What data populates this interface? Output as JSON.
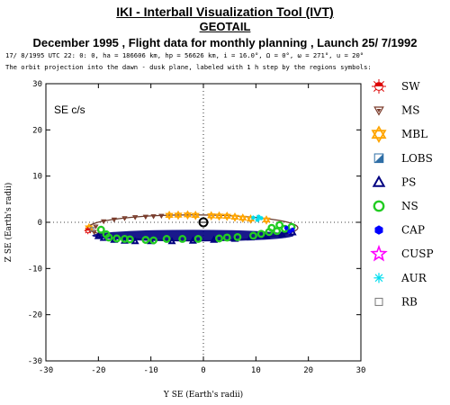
{
  "header": {
    "title": "IKI - Interball Visualization Tool (IVT)",
    "subtitle": "GEOTAIL",
    "line3": "December 1995 ,  Flight data for monthly planning ,   Launch 25/ 7/1992",
    "info": "17/ 8/1995 UTC 22: 0: 0, ha = 186606 km, hp = 56626 km, i = 16.0°, Ω =   0°, ω = 271°, u =  20°",
    "note": "The orbit projection into the dawn - dusk plane, labeled with 1 h step by the regions symbols:"
  },
  "panel_label": "SE c/s",
  "colors": {
    "orbit": "#6b3b2b",
    "SW": "#dd0000",
    "MS": "#7a3b2a",
    "MBL": "#ffa500",
    "LOBS": "#2e6ea6",
    "PS": "#000080",
    "NS": "#22cc22",
    "CAP": "#0000ff",
    "CUSP": "#ff00ff",
    "AUR": "#00ddee",
    "RB": "#777777",
    "earth": "#000000"
  },
  "legend": [
    {
      "key": "SW",
      "label": "SW",
      "icon": "sun-icon"
    },
    {
      "key": "MS",
      "label": "MS",
      "icon": "triangle-down-icon"
    },
    {
      "key": "MBL",
      "label": "MBL",
      "icon": "star-of-david-icon"
    },
    {
      "key": "LOBS",
      "label": "LOBS",
      "icon": "half-square-icon"
    },
    {
      "key": "PS",
      "label": "PS",
      "icon": "triangle-icon"
    },
    {
      "key": "NS",
      "label": "NS",
      "icon": "circle-icon"
    },
    {
      "key": "CAP",
      "label": "CAP",
      "icon": "hexagon-icon"
    },
    {
      "key": "CUSP",
      "label": "CUSP",
      "icon": "star-icon"
    },
    {
      "key": "AUR",
      "label": "AUR",
      "icon": "asterisk-icon"
    },
    {
      "key": "RB",
      "label": "RB",
      "icon": "square-icon"
    }
  ],
  "chart_data": {
    "type": "scatter",
    "xlabel": "Y SE (Earth's radii)",
    "ylabel": "Z SE (Earth's radii)",
    "xlim": [
      -30,
      30
    ],
    "ylim": [
      -30,
      30
    ],
    "xticks": [
      -30,
      -20,
      -10,
      0,
      10,
      20,
      30
    ],
    "yticks": [
      -30,
      -20,
      -10,
      0,
      10,
      20,
      30
    ],
    "grid": false,
    "dotted_zero_lines": true,
    "orbit_ellipse": {
      "center": [
        -2.0,
        -1.2
      ],
      "semi_axis_y": 20.0,
      "semi_axis_z": 2.8
    },
    "earth": [
      0,
      0
    ],
    "series": [
      {
        "region": "MS",
        "points": [
          [
            -20.5,
            -0.9
          ],
          [
            -19,
            0.2
          ],
          [
            -17,
            0.6
          ],
          [
            -15,
            0.9
          ],
          [
            -13,
            1.1
          ],
          [
            -11,
            1.2
          ],
          [
            -9.5,
            1.3
          ],
          [
            -8,
            1.4
          ],
          [
            -21.5,
            -1.7
          ],
          [
            -20.8,
            -2.1
          ]
        ]
      },
      {
        "region": "MBL",
        "points": [
          [
            -21.8,
            -1.2
          ],
          [
            -6.5,
            1.5
          ],
          [
            -4.8,
            1.55
          ],
          [
            -3,
            1.6
          ],
          [
            -1.5,
            1.5
          ],
          [
            1.5,
            1.4
          ],
          [
            3,
            1.35
          ],
          [
            4.5,
            1.3
          ],
          [
            6,
            1.1
          ],
          [
            7.5,
            0.9
          ],
          [
            9,
            0.7
          ],
          [
            12,
            0.5
          ]
        ]
      },
      {
        "region": "AUR",
        "points": [
          [
            9.5,
            1.0
          ],
          [
            10.5,
            1.2
          ],
          [
            11,
            0.9
          ],
          [
            10.3,
            0.5
          ]
        ]
      },
      {
        "region": "PS",
        "points": [
          [
            -19,
            -3.4
          ],
          [
            -17,
            -3.8
          ],
          [
            -15,
            -4.0
          ],
          [
            -13,
            -4.1
          ],
          [
            -10,
            -4.1
          ],
          [
            -6,
            -4.1
          ],
          [
            -2,
            -4.0
          ],
          [
            2,
            -3.8
          ],
          [
            6,
            -3.6
          ],
          [
            9,
            -3.3
          ],
          [
            12,
            -3.0
          ],
          [
            15,
            -2.6
          ],
          [
            17,
            -2.2
          ],
          [
            -20,
            -3.0
          ],
          [
            16,
            -1.8
          ]
        ]
      },
      {
        "region": "NS",
        "points": [
          [
            -19.5,
            -1.6
          ],
          [
            -18.5,
            -2.6
          ],
          [
            -18,
            -3.3
          ],
          [
            -16.5,
            -3.5
          ],
          [
            -15,
            -3.6
          ],
          [
            -14,
            -3.7
          ],
          [
            -11,
            -3.8
          ],
          [
            -9.5,
            -3.9
          ],
          [
            -7,
            -3.6
          ],
          [
            -4,
            -3.6
          ],
          [
            -1,
            -3.6
          ],
          [
            3,
            -3.5
          ],
          [
            4.5,
            -3.3
          ],
          [
            6.5,
            -3.2
          ],
          [
            9.5,
            -2.9
          ],
          [
            11,
            -2.5
          ],
          [
            12.5,
            -2.1
          ],
          [
            14,
            -1.9
          ],
          [
            15.5,
            -1.4
          ],
          [
            16.8,
            -1.0
          ],
          [
            13,
            -1.2
          ],
          [
            14.5,
            -0.6
          ]
        ]
      },
      {
        "region": "CAP",
        "points": [
          [
            15.8,
            -1.2
          ],
          [
            16.4,
            -2.0
          ],
          [
            17,
            -1.6
          ]
        ]
      },
      {
        "region": "SW",
        "points": [
          [
            -22,
            -1.8
          ]
        ]
      },
      {
        "region": "RB",
        "points": [
          [
            -21.2,
            -1.5
          ]
        ]
      }
    ]
  }
}
